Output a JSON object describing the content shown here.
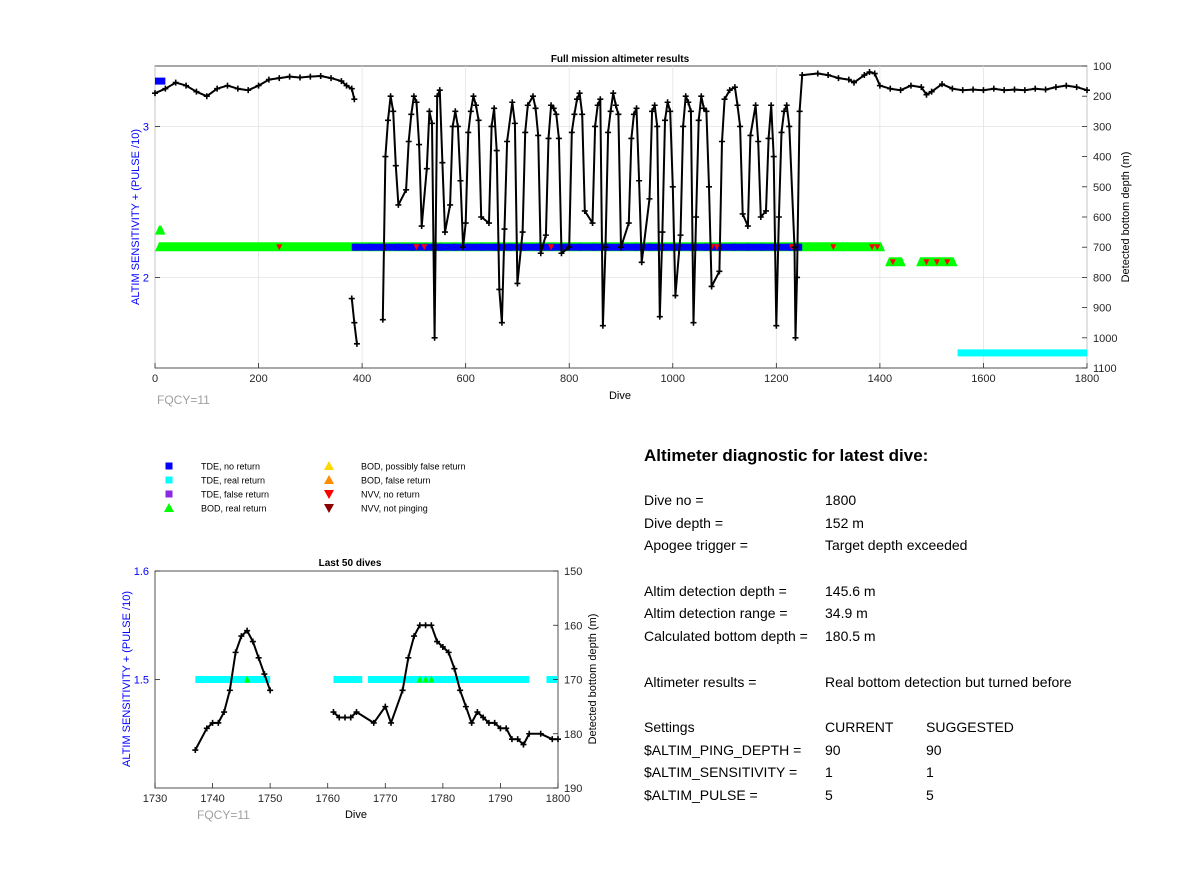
{
  "colors": {
    "tde_no_return": "#0000ff",
    "tde_real_return": "#00ffff",
    "tde_false_return": "#8a2be2",
    "bod_real_return": "#00ff00",
    "bod_possibly_false": "#ffd700",
    "bod_false_return": "#ff8c00",
    "nvv_no_return": "#ff0000",
    "nvv_not_pinging": "#8b0000",
    "left_axis_label": "#0000ff",
    "fqcy_text": "#a0a0a0"
  },
  "top_chart": {
    "title": "Full mission altimeter results",
    "xlabel": "Dive",
    "ylabel_left": "ALTIM SENSITIVITY + (PULSE /10)",
    "ylabel_right": "Detected bottom depth (m)",
    "fqcy": "FQCY=11",
    "x_ticks": [
      "0",
      "200",
      "400",
      "600",
      "800",
      "1000",
      "1200",
      "1400",
      "1600",
      "1800"
    ],
    "y_left_ticks": [
      "3",
      "2"
    ],
    "y_right_ticks": [
      "100",
      "200",
      "300",
      "400",
      "500",
      "600",
      "700",
      "800",
      "900",
      "1000",
      "1100"
    ]
  },
  "bottom_chart": {
    "title": "Last 50 dives",
    "xlabel": "Dive",
    "ylabel_left": "ALTIM SENSITIVITY + (PULSE /10)",
    "ylabel_right": "Detected bottom depth (m)",
    "fqcy": "FQCY=11",
    "x_ticks": [
      "1730",
      "1740",
      "1750",
      "1760",
      "1770",
      "1780",
      "1790",
      "1800"
    ],
    "y_left_ticks": [
      "1.6",
      "1.5"
    ],
    "y_right_ticks": [
      "150",
      "160",
      "170",
      "180",
      "190"
    ]
  },
  "legend": [
    {
      "label": "TDE, no return",
      "symbol": "square",
      "colorKey": "tde_no_return"
    },
    {
      "label": "TDE, real return",
      "symbol": "square",
      "colorKey": "tde_real_return"
    },
    {
      "label": "TDE, false return",
      "symbol": "square",
      "colorKey": "tde_false_return"
    },
    {
      "label": "BOD, real return",
      "symbol": "triangle-up",
      "colorKey": "bod_real_return"
    },
    {
      "label": "BOD, possibly false return",
      "symbol": "triangle-up",
      "colorKey": "bod_possibly_false"
    },
    {
      "label": "BOD, false return",
      "symbol": "triangle-up",
      "colorKey": "bod_false_return"
    },
    {
      "label": "NVV, no return",
      "symbol": "triangle-down",
      "colorKey": "nvv_no_return"
    },
    {
      "label": "NVV, not pinging",
      "symbol": "triangle-down",
      "colorKey": "nvv_not_pinging"
    }
  ],
  "diagnostic": {
    "title": "Altimeter diagnostic for latest dive:",
    "dive_no_label": "Dive no =",
    "dive_no": "1800",
    "dive_depth_label": "Dive depth =",
    "dive_depth": "152 m",
    "apogee_label": "Apogee trigger =",
    "apogee": "Target depth exceeded",
    "detect_depth_label": "Altim detection depth =",
    "detect_depth": "145.6 m",
    "detect_range_label": "Altim detection range =",
    "detect_range": "34.9 m",
    "calc_bottom_label": "Calculated bottom depth =",
    "calc_bottom": "180.5 m",
    "results_label": "Altimeter results =",
    "results": "Real bottom detection but turned before",
    "settings_label": "Settings",
    "current_label": "CURRENT",
    "suggested_label": "SUGGESTED",
    "settings": [
      {
        "name": "$ALTIM_PING_DEPTH =",
        "current": "90",
        "suggested": "90"
      },
      {
        "name": "$ALTIM_SENSITIVITY =",
        "current": "1",
        "suggested": "1"
      },
      {
        "name": "$ALTIM_PULSE =",
        "current": "5",
        "suggested": "5"
      }
    ]
  },
  "chart_data": [
    {
      "type": "scatter",
      "title": "Full mission altimeter results",
      "xlabel": "Dive",
      "ylabel_left": "ALTIM SENSITIVITY + (PULSE /10)",
      "ylabel_right": "Detected bottom depth (m)",
      "xlim": [
        0,
        1800
      ],
      "ylim_left": [
        1.4,
        3.4
      ],
      "ylim_right_reversed": [
        100,
        1100
      ],
      "grid": true,
      "bottom_depth_series": [
        [
          0,
          190
        ],
        [
          20,
          175
        ],
        [
          40,
          155
        ],
        [
          60,
          165
        ],
        [
          80,
          185
        ],
        [
          100,
          200
        ],
        [
          120,
          175
        ],
        [
          140,
          165
        ],
        [
          160,
          175
        ],
        [
          180,
          180
        ],
        [
          200,
          165
        ],
        [
          220,
          145
        ],
        [
          240,
          140
        ],
        [
          260,
          135
        ],
        [
          280,
          138
        ],
        [
          300,
          135
        ],
        [
          320,
          133
        ],
        [
          340,
          140
        ],
        [
          360,
          150
        ],
        [
          370,
          165
        ],
        [
          380,
          175
        ],
        [
          385,
          210
        ],
        [
          380,
          870
        ],
        [
          385,
          950
        ],
        [
          390,
          1020
        ],
        [
          440,
          940
        ],
        [
          445,
          400
        ],
        [
          450,
          280
        ],
        [
          455,
          200
        ],
        [
          460,
          250
        ],
        [
          465,
          430
        ],
        [
          470,
          560
        ],
        [
          485,
          510
        ],
        [
          490,
          350
        ],
        [
          495,
          260
        ],
        [
          500,
          200
        ],
        [
          505,
          220
        ],
        [
          510,
          360
        ],
        [
          515,
          630
        ],
        [
          525,
          440
        ],
        [
          530,
          250
        ],
        [
          535,
          290
        ],
        [
          540,
          1000
        ],
        [
          545,
          200
        ],
        [
          550,
          180
        ],
        [
          555,
          420
        ],
        [
          560,
          650
        ],
        [
          570,
          560
        ],
        [
          575,
          300
        ],
        [
          580,
          250
        ],
        [
          585,
          300
        ],
        [
          590,
          480
        ],
        [
          595,
          700
        ],
        [
          600,
          620
        ],
        [
          605,
          320
        ],
        [
          610,
          250
        ],
        [
          615,
          200
        ],
        [
          620,
          230
        ],
        [
          625,
          280
        ],
        [
          630,
          600
        ],
        [
          645,
          620
        ],
        [
          650,
          300
        ],
        [
          655,
          240
        ],
        [
          660,
          380
        ],
        [
          665,
          840
        ],
        [
          670,
          950
        ],
        [
          675,
          640
        ],
        [
          680,
          350
        ],
        [
          690,
          220
        ],
        [
          695,
          290
        ],
        [
          700,
          820
        ],
        [
          710,
          650
        ],
        [
          715,
          320
        ],
        [
          720,
          230
        ],
        [
          730,
          200
        ],
        [
          735,
          240
        ],
        [
          740,
          330
        ],
        [
          745,
          720
        ],
        [
          755,
          660
        ],
        [
          760,
          340
        ],
        [
          765,
          230
        ],
        [
          770,
          240
        ],
        [
          775,
          260
        ],
        [
          780,
          340
        ],
        [
          785,
          720
        ],
        [
          800,
          700
        ],
        [
          805,
          320
        ],
        [
          810,
          260
        ],
        [
          815,
          210
        ],
        [
          820,
          190
        ],
        [
          825,
          260
        ],
        [
          830,
          580
        ],
        [
          845,
          620
        ],
        [
          850,
          300
        ],
        [
          855,
          230
        ],
        [
          860,
          210
        ],
        [
          865,
          960
        ],
        [
          870,
          700
        ],
        [
          875,
          320
        ],
        [
          880,
          250
        ],
        [
          885,
          190
        ],
        [
          890,
          230
        ],
        [
          895,
          260
        ],
        [
          900,
          700
        ],
        [
          915,
          620
        ],
        [
          920,
          340
        ],
        [
          925,
          260
        ],
        [
          930,
          240
        ],
        [
          935,
          480
        ],
        [
          940,
          750
        ],
        [
          955,
          540
        ],
        [
          960,
          250
        ],
        [
          965,
          230
        ],
        [
          970,
          300
        ],
        [
          975,
          930
        ],
        [
          980,
          650
        ],
        [
          985,
          280
        ],
        [
          990,
          220
        ],
        [
          995,
          250
        ],
        [
          1000,
          500
        ],
        [
          1005,
          860
        ],
        [
          1015,
          660
        ],
        [
          1020,
          300
        ],
        [
          1025,
          200
        ],
        [
          1030,
          220
        ],
        [
          1035,
          250
        ],
        [
          1040,
          950
        ],
        [
          1045,
          600
        ],
        [
          1050,
          280
        ],
        [
          1055,
          200
        ],
        [
          1060,
          240
        ],
        [
          1065,
          250
        ],
        [
          1070,
          500
        ],
        [
          1075,
          830
        ],
        [
          1090,
          780
        ],
        [
          1095,
          350
        ],
        [
          1100,
          210
        ],
        [
          1110,
          180
        ],
        [
          1120,
          170
        ],
        [
          1125,
          230
        ],
        [
          1130,
          300
        ],
        [
          1135,
          590
        ],
        [
          1145,
          630
        ],
        [
          1150,
          330
        ],
        [
          1160,
          230
        ],
        [
          1165,
          350
        ],
        [
          1170,
          600
        ],
        [
          1180,
          580
        ],
        [
          1185,
          340
        ],
        [
          1190,
          230
        ],
        [
          1195,
          400
        ],
        [
          1200,
          960
        ],
        [
          1205,
          600
        ],
        [
          1210,
          320
        ],
        [
          1215,
          250
        ],
        [
          1220,
          230
        ],
        [
          1225,
          300
        ],
        [
          1235,
          700
        ],
        [
          1237,
          1000
        ],
        [
          1240,
          800
        ],
        [
          1245,
          250
        ],
        [
          1250,
          130
        ],
        [
          1280,
          125
        ],
        [
          1300,
          130
        ],
        [
          1320,
          140
        ],
        [
          1340,
          145
        ],
        [
          1350,
          155
        ],
        [
          1370,
          130
        ],
        [
          1380,
          120
        ],
        [
          1390,
          125
        ],
        [
          1400,
          165
        ],
        [
          1420,
          175
        ],
        [
          1440,
          180
        ],
        [
          1460,
          165
        ],
        [
          1480,
          170
        ],
        [
          1490,
          195
        ],
        [
          1500,
          185
        ],
        [
          1520,
          160
        ],
        [
          1540,
          175
        ],
        [
          1560,
          180
        ],
        [
          1580,
          178
        ],
        [
          1600,
          180
        ],
        [
          1620,
          175
        ],
        [
          1640,
          180
        ],
        [
          1660,
          178
        ],
        [
          1680,
          180
        ],
        [
          1700,
          175
        ],
        [
          1720,
          178
        ],
        [
          1740,
          170
        ],
        [
          1760,
          165
        ],
        [
          1780,
          170
        ],
        [
          1800,
          180
        ]
      ],
      "altim_setting_bands": [
        {
          "x": [
            0,
            20
          ],
          "y": 3.3,
          "marker": "TDE, no return"
        },
        {
          "x": [
            0,
            20
          ],
          "y": 2.31,
          "marker": "BOD, real return"
        },
        {
          "x": [
            0,
            1410
          ],
          "y": 2.2,
          "marker": "BOD, real return"
        },
        {
          "x": [
            380,
            1250
          ],
          "y": 2.2,
          "marker": "TDE, no return"
        },
        {
          "x": [
            1410,
            1450
          ],
          "y": 2.1,
          "marker": "BOD, real return"
        },
        {
          "x": [
            1470,
            1550
          ],
          "y": 2.1,
          "marker": "BOD, real return"
        },
        {
          "x": [
            1550,
            1800
          ],
          "y": 1.5,
          "marker": "TDE, real return"
        }
      ]
    },
    {
      "type": "scatter",
      "title": "Last 50 dives",
      "xlabel": "Dive",
      "ylabel_left": "ALTIM SENSITIVITY + (PULSE /10)",
      "ylabel_right": "Detected bottom depth (m)",
      "xlim": [
        1730,
        1800
      ],
      "ylim_left": [
        1.4,
        1.6
      ],
      "ylim_right_reversed": [
        150,
        190
      ],
      "grid": false,
      "bottom_depth_series": [
        [
          1737,
          183
        ],
        [
          1739,
          179
        ],
        [
          1740,
          178
        ],
        [
          1741,
          178
        ],
        [
          1742,
          176
        ],
        [
          1743,
          172
        ],
        [
          1744,
          165
        ],
        [
          1745,
          162
        ],
        [
          1746,
          161
        ],
        [
          1747,
          163
        ],
        [
          1748,
          166
        ],
        [
          1749,
          169
        ],
        [
          1750,
          172
        ],
        [
          1761,
          176
        ],
        [
          1762,
          177
        ],
        [
          1763,
          177
        ],
        [
          1764,
          177
        ],
        [
          1765,
          176
        ],
        [
          1768,
          178
        ],
        [
          1770,
          175
        ],
        [
          1771,
          178
        ],
        [
          1773,
          172
        ],
        [
          1774,
          166
        ],
        [
          1775,
          162
        ],
        [
          1776,
          160
        ],
        [
          1777,
          160
        ],
        [
          1778,
          160
        ],
        [
          1779,
          163
        ],
        [
          1780,
          164
        ],
        [
          1781,
          165
        ],
        [
          1782,
          168
        ],
        [
          1783,
          172
        ],
        [
          1784,
          175
        ],
        [
          1785,
          178
        ],
        [
          1786,
          176
        ],
        [
          1787,
          177
        ],
        [
          1788,
          178
        ],
        [
          1789,
          178
        ],
        [
          1790,
          179
        ],
        [
          1791,
          179
        ],
        [
          1792,
          181
        ],
        [
          1793,
          181
        ],
        [
          1794,
          182
        ],
        [
          1795,
          180
        ],
        [
          1797,
          180
        ],
        [
          1799,
          181
        ],
        [
          1800,
          181
        ]
      ],
      "altim_setting_series": [
        {
          "x": [
            1737,
            1750
          ],
          "y": 1.5,
          "marker": "TDE, real return"
        },
        {
          "x": [
            1761,
            1766
          ],
          "y": 1.5,
          "marker": "TDE, real return"
        },
        {
          "x": [
            1767,
            1795
          ],
          "y": 1.5,
          "marker": "TDE, real return"
        },
        {
          "x": [
            1798,
            1800
          ],
          "y": 1.5,
          "marker": "TDE, real return"
        }
      ]
    }
  ]
}
